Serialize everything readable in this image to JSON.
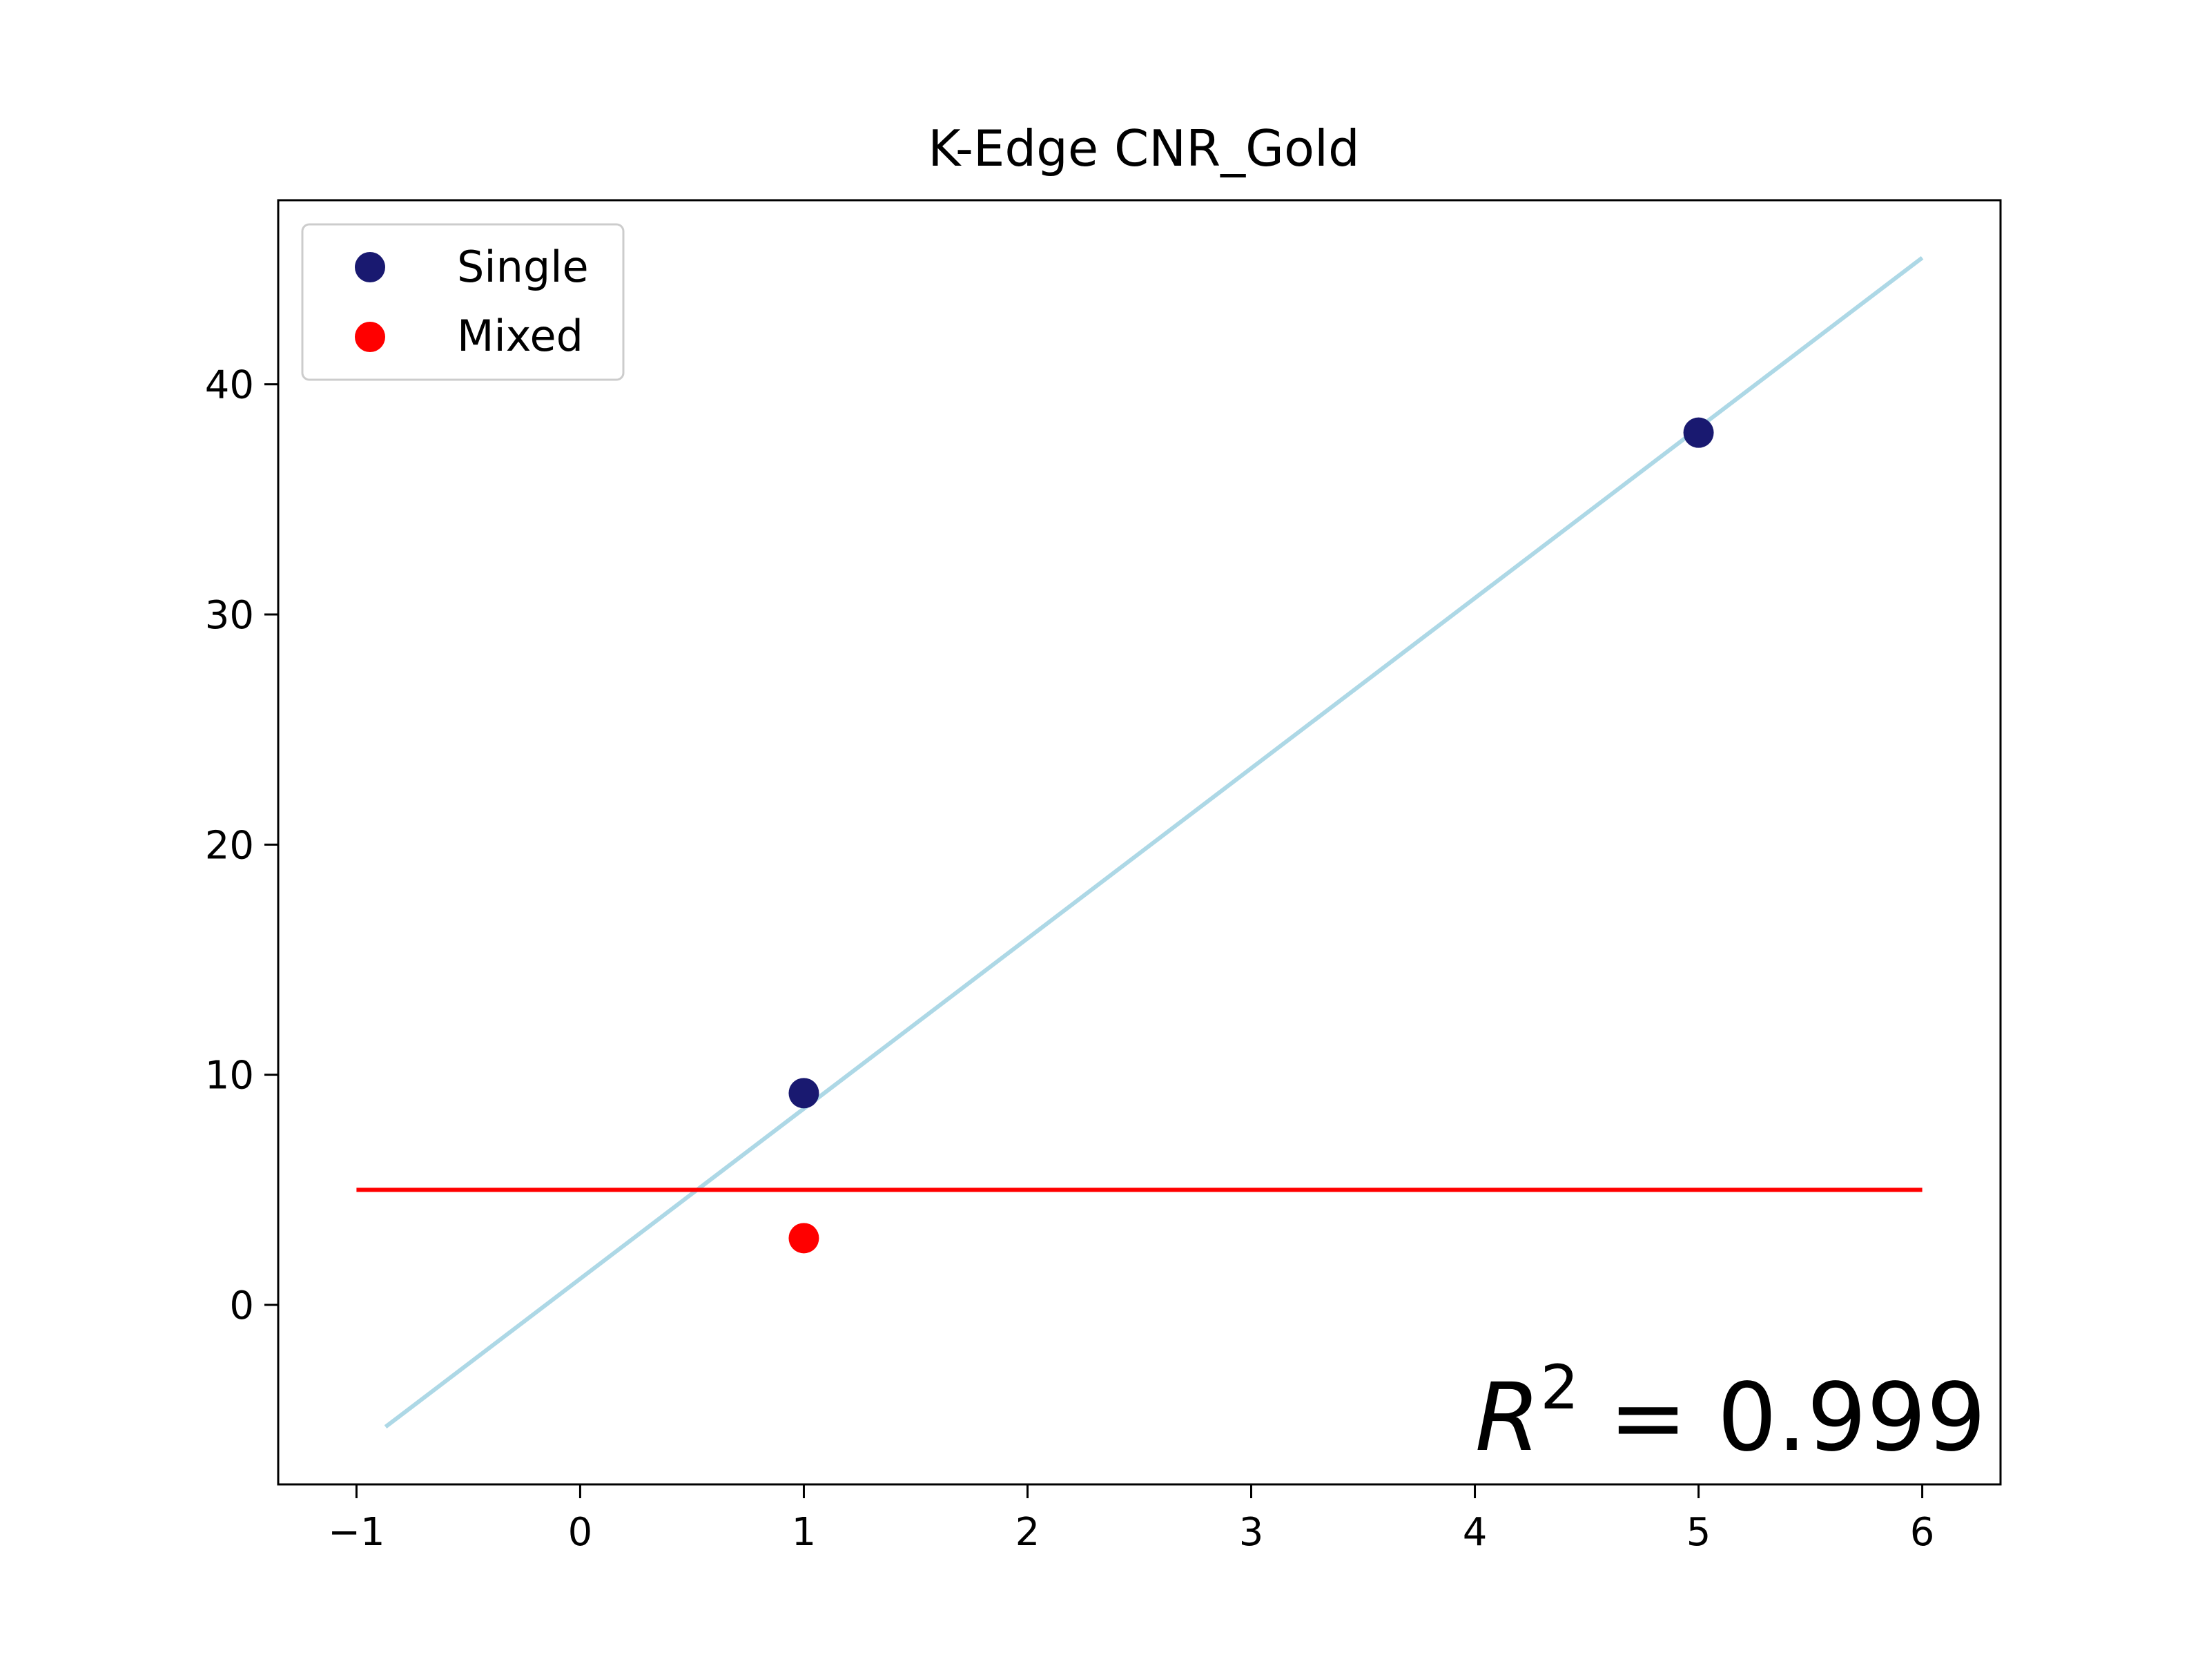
{
  "chart_data": {
    "type": "scatter",
    "title": "K-Edge CNR_Gold",
    "xlabel": "",
    "ylabel": "",
    "xlim": [
      -1.35,
      6.35
    ],
    "ylim": [
      -7.8,
      48.0
    ],
    "xticks": [
      -1,
      0,
      1,
      2,
      3,
      4,
      5,
      6
    ],
    "xtick_labels": [
      "−1",
      "0",
      "1",
      "2",
      "3",
      "4",
      "5",
      "6"
    ],
    "yticks": [
      0,
      10,
      20,
      30,
      40
    ],
    "ytick_labels": [
      "0",
      "10",
      "20",
      "30",
      "40"
    ],
    "grid": false,
    "legend_position": "upper-left",
    "series": [
      {
        "name": "Single",
        "kind": "scatter",
        "color": "#191970",
        "points": [
          [
            1,
            9.2
          ],
          [
            5,
            37.9
          ]
        ]
      },
      {
        "name": "Mixed",
        "kind": "scatter",
        "color": "#ff0000",
        "points": [
          [
            1,
            2.9
          ]
        ]
      }
    ],
    "lines": [
      {
        "kind": "fit",
        "color": "#add8e6",
        "points": [
          [
            -0.87,
            -5.3
          ],
          [
            6.0,
            45.5
          ]
        ]
      },
      {
        "kind": "threshold",
        "color": "#ff0000",
        "points": [
          [
            -1.0,
            5.0
          ],
          [
            6.0,
            5.0
          ]
        ]
      }
    ],
    "annotation": {
      "symbol": "R",
      "exponent": "2",
      "text": " = 0.999"
    }
  }
}
